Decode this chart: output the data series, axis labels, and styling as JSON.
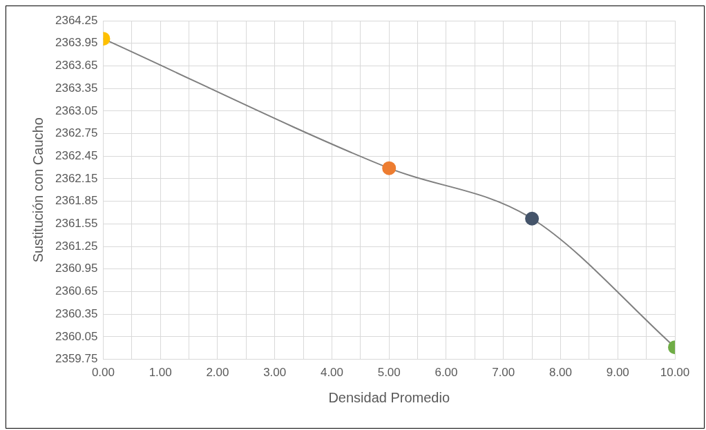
{
  "chart_data": {
    "type": "line",
    "xlabel": "Densidad Promedio",
    "ylabel": "Sustitución con Caucho",
    "x": [
      0,
      5,
      7.5,
      10
    ],
    "series": [
      {
        "color": "#7f7f7f",
        "colors": [
          "#ffc000",
          "#ed7d31",
          "#44546a",
          "#70ad47"
        ],
        "values": [
          2364.01,
          2362.29,
          2361.62,
          2359.91
        ]
      }
    ],
    "xlim": [
      0,
      10
    ],
    "xticks": [
      {
        "value": 0,
        "label": "0.00"
      },
      {
        "value": 0.5,
        "label": null
      },
      {
        "value": 1,
        "label": "1.00"
      },
      {
        "value": 1.5,
        "label": null
      },
      {
        "value": 2,
        "label": "2.00"
      },
      {
        "value": 2.5,
        "label": null
      },
      {
        "value": 3,
        "label": "3.00"
      },
      {
        "value": 3.5,
        "label": null
      },
      {
        "value": 4,
        "label": "4.00"
      },
      {
        "value": 4.5,
        "label": null
      },
      {
        "value": 5,
        "label": "5.00"
      },
      {
        "value": 5.5,
        "label": null
      },
      {
        "value": 6,
        "label": "6.00"
      },
      {
        "value": 6.5,
        "label": null
      },
      {
        "value": 7,
        "label": "7.00"
      },
      {
        "value": 7.5,
        "label": null
      },
      {
        "value": 8,
        "label": "8.00"
      },
      {
        "value": 8.5,
        "label": null
      },
      {
        "value": 9,
        "label": "9.00"
      },
      {
        "value": 9.5,
        "label": null
      },
      {
        "value": 10,
        "label": "10.00"
      }
    ],
    "ylim": [
      2359.75,
      2364.25
    ],
    "yticks": [
      {
        "value": 2359.75,
        "label": "2359.75"
      },
      {
        "value": 2360.05,
        "label": "2360.05"
      },
      {
        "value": 2360.35,
        "label": "2360.35"
      },
      {
        "value": 2360.65,
        "label": "2360.65"
      },
      {
        "value": 2360.95,
        "label": "2360.95"
      },
      {
        "value": 2361.25,
        "label": "2361.25"
      },
      {
        "value": 2361.55,
        "label": "2361.55"
      },
      {
        "value": 2361.85,
        "label": "2361.85"
      },
      {
        "value": 2362.15,
        "label": "2362.15"
      },
      {
        "value": 2362.45,
        "label": "2362.45"
      },
      {
        "value": 2362.75,
        "label": "2362.75"
      },
      {
        "value": 2363.05,
        "label": "2363.05"
      },
      {
        "value": 2363.35,
        "label": "2363.35"
      },
      {
        "value": 2363.65,
        "label": "2363.65"
      },
      {
        "value": 2363.95,
        "label": "2363.95"
      },
      {
        "value": 2364.25,
        "label": "2364.25"
      }
    ],
    "grid": true,
    "legend": false,
    "marker": "circle",
    "line_style": "solid"
  }
}
